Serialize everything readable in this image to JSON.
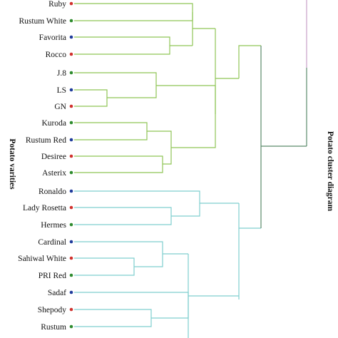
{
  "y_axis_title": "Potato varities",
  "right_title": "Potato cluster diagram",
  "leaves": [
    {
      "label": "Ruby",
      "dot": "#d0312d"
    },
    {
      "label": "Rustum White",
      "dot": "#2e8b2e"
    },
    {
      "label": "Favorita",
      "dot": "#1f3b9b"
    },
    {
      "label": "Rocco",
      "dot": "#d0312d"
    },
    {
      "label": "J.8",
      "dot": "#2e8b2e"
    },
    {
      "label": "LS",
      "dot": "#1f3b9b"
    },
    {
      "label": "GN",
      "dot": "#d0312d"
    },
    {
      "label": "Kuroda",
      "dot": "#2e8b2e"
    },
    {
      "label": "Rustum Red",
      "dot": "#1f3b9b"
    },
    {
      "label": "Desiree",
      "dot": "#d0312d"
    },
    {
      "label": "Asterix",
      "dot": "#2e8b2e"
    },
    {
      "label": "Ronaldo",
      "dot": "#1f3b9b"
    },
    {
      "label": "Lady Rosetta",
      "dot": "#d0312d"
    },
    {
      "label": "Hermes",
      "dot": "#2e8b2e"
    },
    {
      "label": "Cardinal",
      "dot": "#1f3b9b"
    },
    {
      "label": "Sahiwal White",
      "dot": "#d0312d"
    },
    {
      "label": "PRI Red",
      "dot": "#2e8b2e"
    },
    {
      "label": "Sadaf",
      "dot": "#1f3b9b"
    },
    {
      "label": "Shepody",
      "dot": "#d0312d"
    },
    {
      "label": "Rustum",
      "dot": "#2e8b2e"
    }
  ],
  "colors": {
    "upper_cluster": "#8fc556",
    "lower_cluster": "#7fcfcf",
    "root_link": "#5a8a6a",
    "top_cluster": "#c9a0c9"
  }
}
